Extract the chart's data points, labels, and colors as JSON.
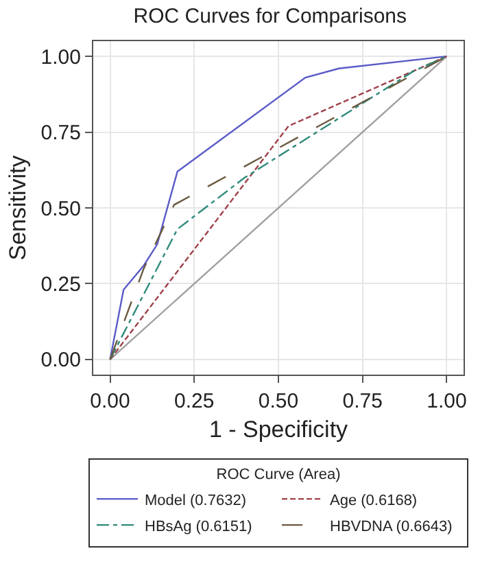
{
  "chart_data": {
    "type": "line",
    "title": "ROC Curves for Comparisons",
    "xlabel": "1 - Specificity",
    "ylabel": "Sensitivity",
    "legend_title": "ROC Curve (Area)",
    "xlim": [
      -0.05,
      1.05
    ],
    "ylim": [
      -0.05,
      1.05
    ],
    "xticks": [
      {
        "value": 0,
        "label": "0.00"
      },
      {
        "value": 0.25,
        "label": "0.25"
      },
      {
        "value": 0.5,
        "label": "0.50"
      },
      {
        "value": 0.75,
        "label": "0.75"
      },
      {
        "value": 1,
        "label": "1.00"
      }
    ],
    "yticks": [
      {
        "value": 0,
        "label": "0.00"
      },
      {
        "value": 0.25,
        "label": "0.25"
      },
      {
        "value": 0.5,
        "label": "0.50"
      },
      {
        "value": 0.75,
        "label": "0.75"
      },
      {
        "value": 1,
        "label": "1.00"
      }
    ],
    "grid": true,
    "legend": "bottom",
    "marker": "none",
    "series": [
      {
        "x": [
          0,
          1
        ],
        "values": [
          0,
          1
        ],
        "color": "#a0a0a0",
        "line_style": "solid"
      },
      {
        "name": "Model (0.7632)",
        "color": "#5a5ac8",
        "line_style": "solid",
        "x": [
          0,
          0.04,
          0.1,
          0.14,
          0.2,
          0.58,
          0.68,
          1
        ],
        "values": [
          0,
          0.23,
          0.31,
          0.38,
          0.62,
          0.93,
          0.96,
          1
        ]
      },
      {
        "name": "Age (0.6168)",
        "color": "#a0404a",
        "line_style": "dashed",
        "x": [
          0,
          0.53,
          1
        ],
        "values": [
          0,
          0.77,
          1
        ]
      },
      {
        "name": "HBsAg (0.6151)",
        "color": "#2e8b7a",
        "line_style": "dashdot",
        "x": [
          0,
          0.2,
          0.4,
          0.9,
          1
        ],
        "values": [
          0,
          0.43,
          0.6,
          0.95,
          1
        ]
      },
      {
        "name": "HBVDNA (0.6643)",
        "color": "#6b5a40",
        "line_style": "longdash",
        "x": [
          0,
          0.1,
          0.19,
          1
        ],
        "values": [
          0,
          0.3,
          0.51,
          1
        ]
      }
    ]
  }
}
